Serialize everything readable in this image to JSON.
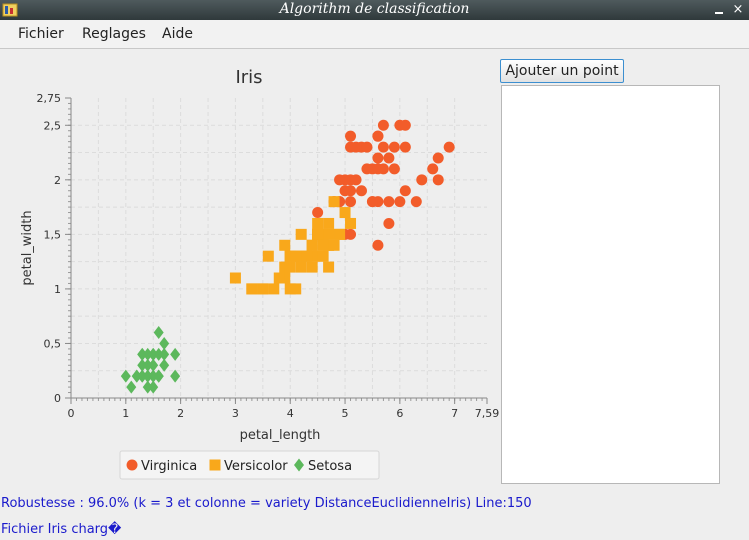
{
  "window": {
    "title": "Algorithm de classification",
    "close_glyph": "×"
  },
  "menu": {
    "items": [
      "Fichier",
      "Reglages",
      "Aide"
    ]
  },
  "toolbar": {
    "add_point_label": "Ajouter un point"
  },
  "status": {
    "robustness": "Robustesse : 96.0% (k = 3 et colonne = variety DistanceEuclidienneIris) Line:150",
    "file_loaded": "Fichier Iris charg�"
  },
  "colors": {
    "virginica": "#f25c2a",
    "versicolor": "#f9a81b",
    "setosa": "#5cb85c",
    "accent": "#3c8fd0"
  },
  "chart_data": {
    "type": "scatter",
    "title": "Iris",
    "xlabel": "petal_length",
    "ylabel": "petal_width",
    "xlim": [
      0,
      7.59
    ],
    "ylim": [
      0,
      2.75
    ],
    "xticks": [
      "0",
      "1",
      "2",
      "3",
      "4",
      "5",
      "6",
      "7",
      "7,59"
    ],
    "yticks": [
      "0",
      "0,5",
      "1",
      "1,5",
      "2",
      "2,5",
      "2,75"
    ],
    "grid": true,
    "legend": "bottom",
    "series": [
      {
        "name": "Virginica",
        "marker": "circle",
        "points": [
          [
            6.0,
            2.5
          ],
          [
            5.1,
            1.9
          ],
          [
            5.9,
            2.1
          ],
          [
            5.6,
            1.8
          ],
          [
            5.8,
            2.2
          ],
          [
            6.6,
            2.1
          ],
          [
            4.5,
            1.7
          ],
          [
            6.3,
            1.8
          ],
          [
            5.8,
            1.8
          ],
          [
            6.1,
            2.5
          ],
          [
            5.1,
            2.0
          ],
          [
            5.3,
            1.9
          ],
          [
            5.5,
            2.1
          ],
          [
            5.0,
            2.0
          ],
          [
            5.1,
            2.4
          ],
          [
            5.3,
            2.3
          ],
          [
            5.5,
            1.8
          ],
          [
            6.7,
            2.2
          ],
          [
            6.9,
            2.3
          ],
          [
            5.0,
            1.5
          ],
          [
            5.7,
            2.3
          ],
          [
            4.9,
            2.0
          ],
          [
            6.7,
            2.0
          ],
          [
            4.9,
            1.8
          ],
          [
            5.7,
            2.1
          ],
          [
            6.0,
            1.8
          ],
          [
            4.8,
            1.8
          ],
          [
            4.9,
            1.8
          ],
          [
            5.6,
            2.1
          ],
          [
            5.8,
            1.6
          ],
          [
            6.1,
            1.9
          ],
          [
            6.4,
            2.0
          ],
          [
            5.6,
            2.2
          ],
          [
            5.1,
            1.5
          ],
          [
            5.6,
            1.4
          ],
          [
            6.1,
            2.3
          ],
          [
            5.6,
            2.4
          ],
          [
            5.5,
            1.8
          ],
          [
            4.8,
            1.8
          ],
          [
            5.4,
            2.1
          ],
          [
            5.6,
            2.4
          ],
          [
            5.1,
            2.3
          ],
          [
            5.9,
            2.3
          ],
          [
            5.7,
            2.5
          ],
          [
            5.2,
            2.3
          ],
          [
            5.0,
            1.9
          ],
          [
            5.2,
            2.0
          ],
          [
            5.4,
            2.3
          ],
          [
            5.1,
            1.8
          ]
        ]
      },
      {
        "name": "Versicolor",
        "marker": "square",
        "points": [
          [
            4.7,
            1.4
          ],
          [
            4.5,
            1.5
          ],
          [
            4.9,
            1.5
          ],
          [
            4.0,
            1.3
          ],
          [
            4.6,
            1.5
          ],
          [
            4.5,
            1.3
          ],
          [
            4.7,
            1.6
          ],
          [
            3.3,
            1.0
          ],
          [
            4.6,
            1.3
          ],
          [
            3.9,
            1.4
          ],
          [
            3.5,
            1.0
          ],
          [
            4.2,
            1.5
          ],
          [
            4.0,
            1.0
          ],
          [
            4.7,
            1.4
          ],
          [
            3.6,
            1.3
          ],
          [
            4.4,
            1.4
          ],
          [
            4.5,
            1.5
          ],
          [
            4.1,
            1.0
          ],
          [
            4.5,
            1.5
          ],
          [
            3.9,
            1.1
          ],
          [
            4.8,
            1.8
          ],
          [
            4.0,
            1.3
          ],
          [
            4.9,
            1.5
          ],
          [
            4.7,
            1.2
          ],
          [
            4.3,
            1.3
          ],
          [
            4.4,
            1.4
          ],
          [
            4.8,
            1.4
          ],
          [
            5.0,
            1.7
          ],
          [
            4.5,
            1.5
          ],
          [
            3.5,
            1.0
          ],
          [
            3.8,
            1.1
          ],
          [
            3.7,
            1.0
          ],
          [
            3.9,
            1.2
          ],
          [
            5.1,
            1.6
          ],
          [
            4.5,
            1.5
          ],
          [
            4.5,
            1.6
          ],
          [
            4.7,
            1.5
          ],
          [
            4.4,
            1.3
          ],
          [
            4.1,
            1.3
          ],
          [
            4.0,
            1.3
          ],
          [
            4.4,
            1.2
          ],
          [
            4.6,
            1.4
          ],
          [
            4.0,
            1.2
          ],
          [
            3.3,
            1.0
          ],
          [
            4.2,
            1.3
          ],
          [
            4.2,
            1.2
          ],
          [
            4.2,
            1.3
          ],
          [
            4.3,
            1.3
          ],
          [
            3.0,
            1.1
          ],
          [
            4.1,
            1.3
          ]
        ]
      },
      {
        "name": "Setosa",
        "marker": "diamond",
        "points": [
          [
            1.4,
            0.2
          ],
          [
            1.3,
            0.2
          ],
          [
            1.5,
            0.2
          ],
          [
            1.7,
            0.4
          ],
          [
            1.4,
            0.3
          ],
          [
            1.5,
            0.1
          ],
          [
            1.6,
            0.2
          ],
          [
            1.1,
            0.1
          ],
          [
            1.2,
            0.2
          ],
          [
            1.3,
            0.4
          ],
          [
            1.7,
            0.3
          ],
          [
            1.0,
            0.2
          ],
          [
            1.9,
            0.4
          ],
          [
            1.6,
            0.4
          ],
          [
            1.5,
            0.3
          ],
          [
            1.6,
            0.6
          ],
          [
            1.4,
            0.1
          ],
          [
            1.9,
            0.2
          ],
          [
            1.6,
            0.2
          ],
          [
            1.5,
            0.4
          ],
          [
            1.2,
            0.2
          ],
          [
            1.3,
            0.3
          ],
          [
            1.3,
            0.2
          ],
          [
            1.7,
            0.5
          ],
          [
            1.5,
            0.4
          ],
          [
            1.4,
            0.4
          ],
          [
            1.6,
            0.2
          ],
          [
            1.3,
            0.4
          ],
          [
            1.4,
            0.2
          ],
          [
            1.5,
            0.2
          ]
        ]
      }
    ]
  }
}
